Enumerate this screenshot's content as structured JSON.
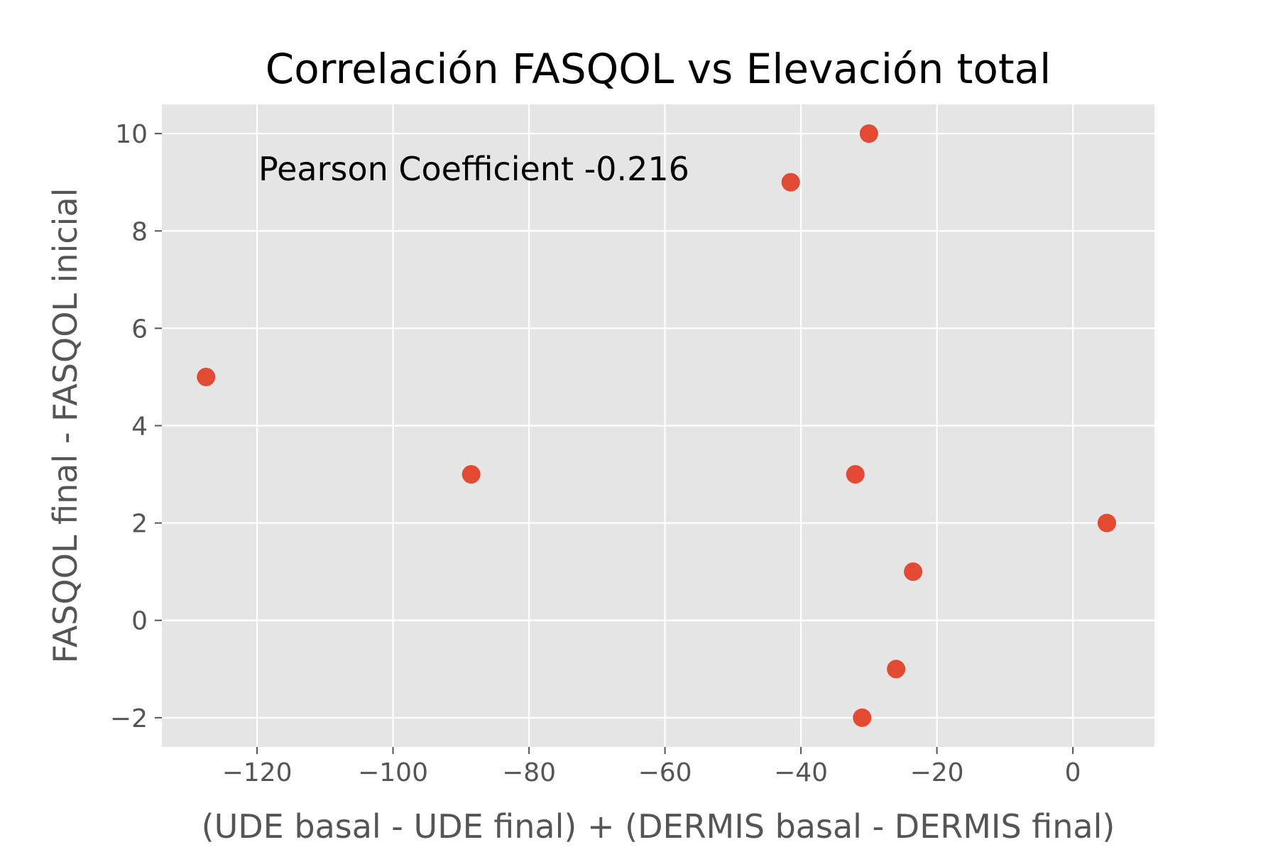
{
  "chart_data": {
    "type": "scatter",
    "title": "Correlación FASQOL vs Elevación total",
    "xlabel": "(UDE basal - UDE final) + (DERMIS basal - DERMIS final)",
    "ylabel": "FASQOL final - FASQOL inicial",
    "xlim": [
      -134,
      12
    ],
    "ylim": [
      -2.6,
      10.6
    ],
    "xticks": [
      -120,
      -100,
      -80,
      -60,
      -40,
      -20,
      0
    ],
    "yticks": [
      -2,
      0,
      2,
      4,
      6,
      8,
      10
    ],
    "xtick_labels": [
      "−120",
      "−100",
      "−80",
      "−60",
      "−40",
      "−20",
      "0"
    ],
    "ytick_labels": [
      "−2",
      "0",
      "2",
      "4",
      "6",
      "8",
      "10"
    ],
    "grid": true,
    "annotation": "Pearson Coefficient -0.216",
    "points": [
      {
        "x": -127.5,
        "y": 5
      },
      {
        "x": -88.5,
        "y": 3
      },
      {
        "x": -41.5,
        "y": 9
      },
      {
        "x": -30,
        "y": 10
      },
      {
        "x": -32,
        "y": 3
      },
      {
        "x": -23.5,
        "y": 1
      },
      {
        "x": -26,
        "y": -1
      },
      {
        "x": -31,
        "y": -2
      },
      {
        "x": 5,
        "y": 2
      }
    ],
    "colors": {
      "plot_background": "#e5e5e5",
      "grid": "#ffffff",
      "marker": "#e24a33",
      "tick_text": "#555555"
    }
  }
}
